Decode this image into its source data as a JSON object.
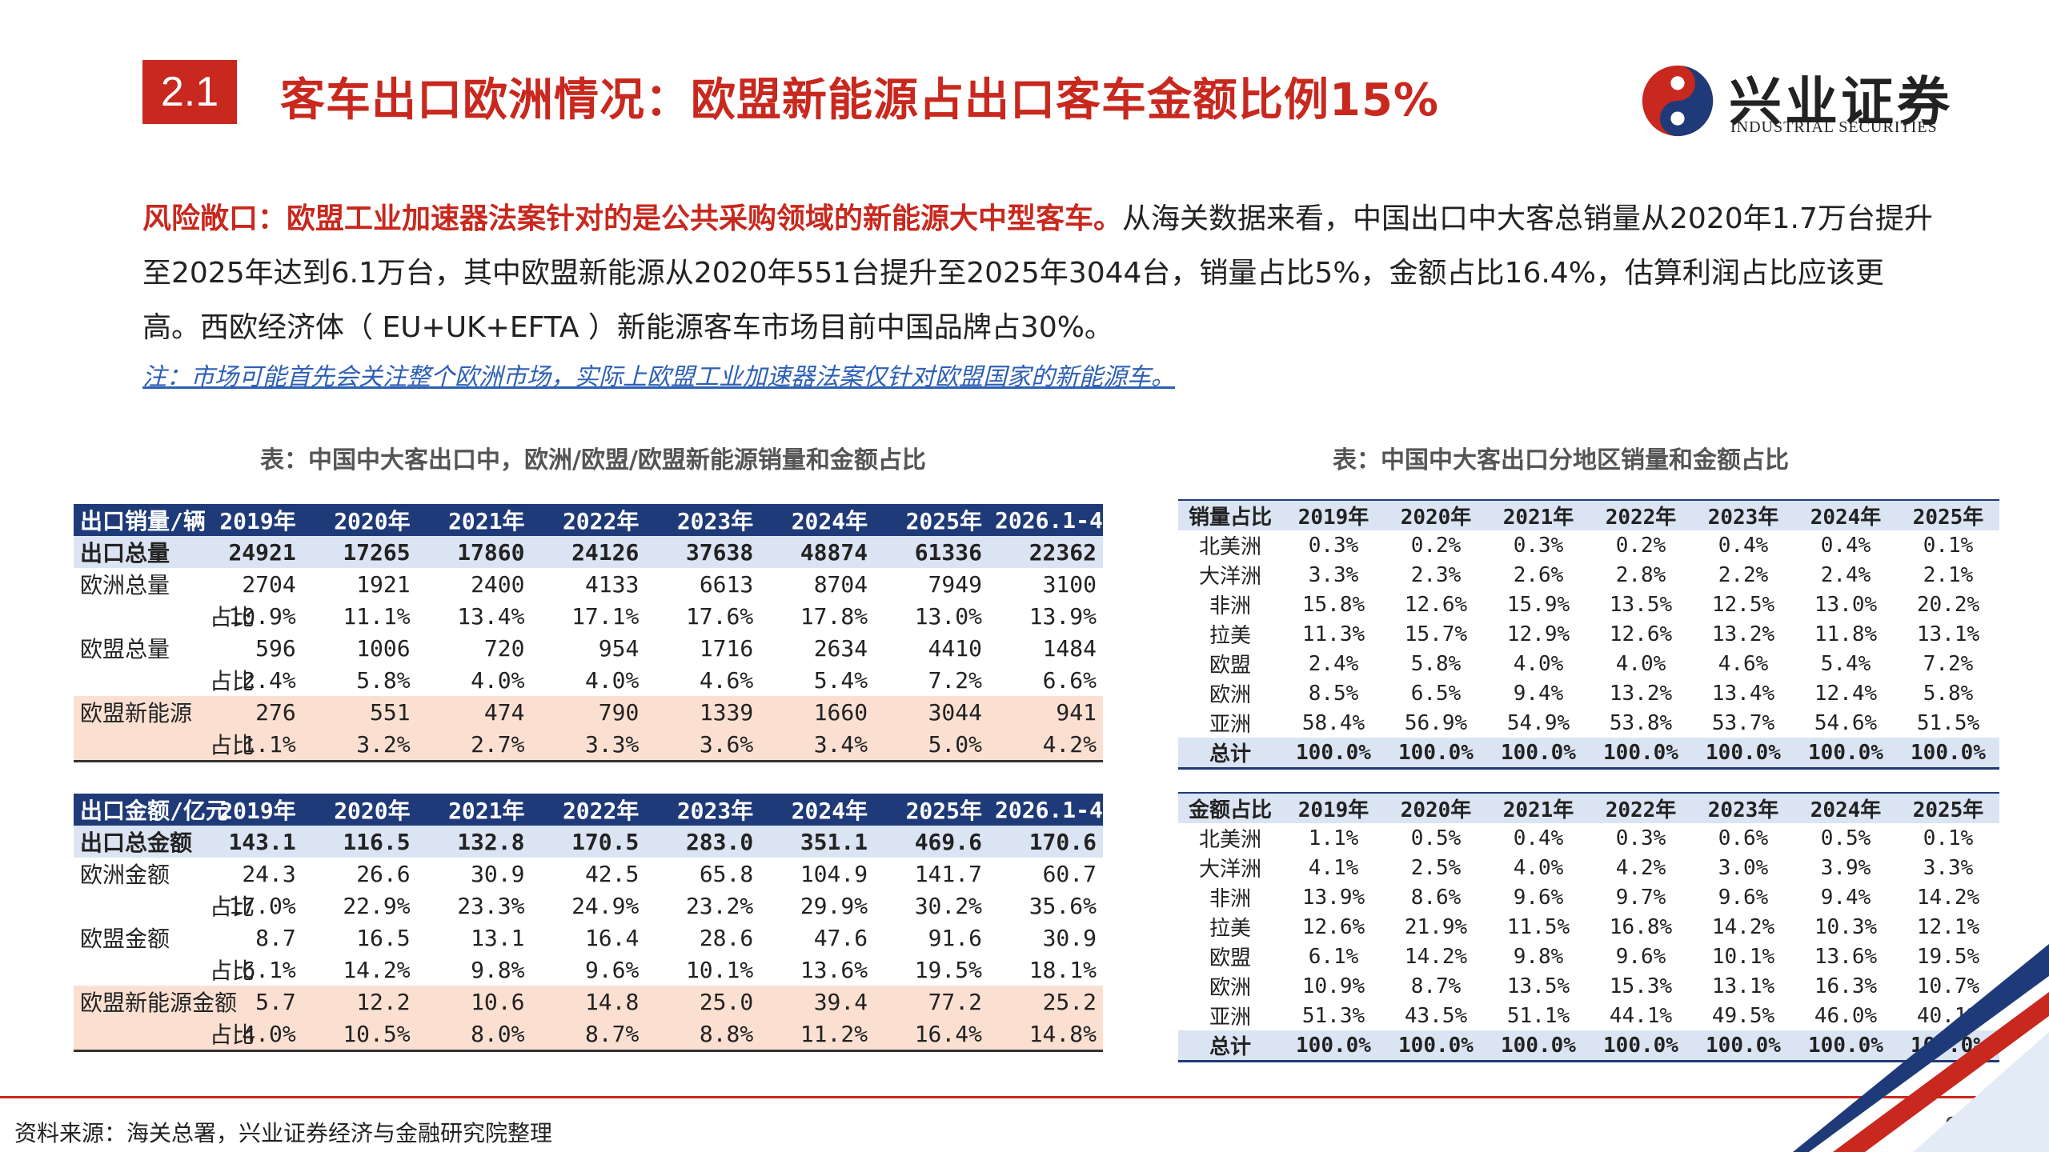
{
  "header": {
    "section_no": "2.1",
    "title": "客车出口欧洲情况：欧盟新能源占出口客车金额比例15%"
  },
  "logo": {
    "cn": "兴业证券",
    "en": "INDUSTRIAL SECURITIES"
  },
  "body": {
    "highlight": "风险敞口：欧盟工业加速器法案针对的是公共采购领域的新能源大中型客车。",
    "text": "从海关数据来看，中国出口中大客总销量从2020年1.7万台提升至2025年达到6.1万台，其中欧盟新能源从2020年551台提升至2025年3044台，销量占比5%，金额占比16.4%，估算利润占比应该更高。西欧经济体（ EU+UK+EFTA ）新能源客车市场目前中国品牌占30%。",
    "note": "注：市场可能首先会关注整个欧洲市场，实际上欧盟工业加速器法案仅针对欧盟国家的新能源车。"
  },
  "left_caption": "表：中国中大客出口中，欧洲/欧盟/欧盟新能源销量和金额占比",
  "right_caption": "表：中国中大客出口分地区销量和金额占比",
  "table_volume": {
    "header": [
      "出口销量/辆",
      "2019年",
      "2020年",
      "2021年",
      "2022年",
      "2023年",
      "2024年",
      "2025年",
      "2026.1-4"
    ],
    "rows": [
      {
        "label": "出口总量",
        "cells": [
          "24921",
          "17265",
          "17860",
          "24126",
          "37638",
          "48874",
          "61336",
          "22362"
        ]
      },
      {
        "label": "欧洲总量",
        "cells": [
          "2704",
          "1921",
          "2400",
          "4133",
          "6613",
          "8704",
          "7949",
          "3100"
        ]
      },
      {
        "label": "占比",
        "cells": [
          "10.9%",
          "11.1%",
          "13.4%",
          "17.1%",
          "17.6%",
          "17.8%",
          "13.0%",
          "13.9%"
        ]
      },
      {
        "label": "欧盟总量",
        "cells": [
          "596",
          "1006",
          "720",
          "954",
          "1716",
          "2634",
          "4410",
          "1484"
        ]
      },
      {
        "label": "占比",
        "cells": [
          "2.4%",
          "5.8%",
          "4.0%",
          "4.0%",
          "4.6%",
          "5.4%",
          "7.2%",
          "6.6%"
        ]
      },
      {
        "label": "欧盟新能源",
        "cells": [
          "276",
          "551",
          "474",
          "790",
          "1339",
          "1660",
          "3044",
          "941"
        ]
      },
      {
        "label": "占比",
        "cells": [
          "1.1%",
          "3.2%",
          "2.7%",
          "3.3%",
          "3.6%",
          "3.4%",
          "5.0%",
          "4.2%"
        ]
      }
    ]
  },
  "table_amount": {
    "header": [
      "出口金额/亿元",
      "2019年",
      "2020年",
      "2021年",
      "2022年",
      "2023年",
      "2024年",
      "2025年",
      "2026.1-4"
    ],
    "rows": [
      {
        "label": "出口总金额",
        "cells": [
          "143.1",
          "116.5",
          "132.8",
          "170.5",
          "283.0",
          "351.1",
          "469.6",
          "170.6"
        ]
      },
      {
        "label": "欧洲金额",
        "cells": [
          "24.3",
          "26.6",
          "30.9",
          "42.5",
          "65.8",
          "104.9",
          "141.7",
          "60.7"
        ]
      },
      {
        "label": "占比",
        "cells": [
          "17.0%",
          "22.9%",
          "23.3%",
          "24.9%",
          "23.2%",
          "29.9%",
          "30.2%",
          "35.6%"
        ]
      },
      {
        "label": "欧盟金额",
        "cells": [
          "8.7",
          "16.5",
          "13.1",
          "16.4",
          "28.6",
          "47.6",
          "91.6",
          "30.9"
        ]
      },
      {
        "label": "占比",
        "cells": [
          "6.1%",
          "14.2%",
          "9.8%",
          "9.6%",
          "10.1%",
          "13.6%",
          "19.5%",
          "18.1%"
        ]
      },
      {
        "label": "欧盟新能源金额",
        "cells": [
          "5.7",
          "12.2",
          "10.6",
          "14.8",
          "25.0",
          "39.4",
          "77.2",
          "25.2"
        ]
      },
      {
        "label": "占比",
        "cells": [
          "4.0%",
          "10.5%",
          "8.0%",
          "8.7%",
          "8.8%",
          "11.2%",
          "16.4%",
          "14.8%"
        ]
      }
    ]
  },
  "table_region_volume": {
    "header": [
      "销量占比",
      "2019年",
      "2020年",
      "2021年",
      "2022年",
      "2023年",
      "2024年",
      "2025年"
    ],
    "rows": [
      {
        "label": "北美洲",
        "cells": [
          "0.3%",
          "0.2%",
          "0.3%",
          "0.2%",
          "0.4%",
          "0.4%",
          "0.1%"
        ]
      },
      {
        "label": "大洋洲",
        "cells": [
          "3.3%",
          "2.3%",
          "2.6%",
          "2.8%",
          "2.2%",
          "2.4%",
          "2.1%"
        ]
      },
      {
        "label": "非洲",
        "cells": [
          "15.8%",
          "12.6%",
          "15.9%",
          "13.5%",
          "12.5%",
          "13.0%",
          "20.2%"
        ]
      },
      {
        "label": "拉美",
        "cells": [
          "11.3%",
          "15.7%",
          "12.9%",
          "12.6%",
          "13.2%",
          "11.8%",
          "13.1%"
        ]
      },
      {
        "label": "欧盟",
        "cells": [
          "2.4%",
          "5.8%",
          "4.0%",
          "4.0%",
          "4.6%",
          "5.4%",
          "7.2%"
        ]
      },
      {
        "label": "欧洲",
        "cells": [
          "8.5%",
          "6.5%",
          "9.4%",
          "13.2%",
          "13.4%",
          "12.4%",
          "5.8%"
        ]
      },
      {
        "label": "亚洲",
        "cells": [
          "58.4%",
          "56.9%",
          "54.9%",
          "53.8%",
          "53.7%",
          "54.6%",
          "51.5%"
        ]
      },
      {
        "label": "总计",
        "cells": [
          "100.0%",
          "100.0%",
          "100.0%",
          "100.0%",
          "100.0%",
          "100.0%",
          "100.0%"
        ]
      }
    ]
  },
  "table_region_amount": {
    "header": [
      "金额占比",
      "2019年",
      "2020年",
      "2021年",
      "2022年",
      "2023年",
      "2024年",
      "2025年"
    ],
    "rows": [
      {
        "label": "北美洲",
        "cells": [
          "1.1%",
          "0.5%",
          "0.4%",
          "0.3%",
          "0.6%",
          "0.5%",
          "0.1%"
        ]
      },
      {
        "label": "大洋洲",
        "cells": [
          "4.1%",
          "2.5%",
          "4.0%",
          "4.2%",
          "3.0%",
          "3.9%",
          "3.3%"
        ]
      },
      {
        "label": "非洲",
        "cells": [
          "13.9%",
          "8.6%",
          "9.6%",
          "9.7%",
          "9.6%",
          "9.4%",
          "14.2%"
        ]
      },
      {
        "label": "拉美",
        "cells": [
          "12.6%",
          "21.9%",
          "11.5%",
          "16.8%",
          "14.2%",
          "10.3%",
          "12.1%"
        ]
      },
      {
        "label": "欧盟",
        "cells": [
          "6.1%",
          "14.2%",
          "9.8%",
          "9.6%",
          "10.1%",
          "13.6%",
          "19.5%"
        ]
      },
      {
        "label": "欧洲",
        "cells": [
          "10.9%",
          "8.7%",
          "13.5%",
          "15.3%",
          "13.1%",
          "16.3%",
          "10.7%"
        ]
      },
      {
        "label": "亚洲",
        "cells": [
          "51.3%",
          "43.5%",
          "51.1%",
          "44.1%",
          "49.5%",
          "46.0%",
          "40.1%"
        ]
      },
      {
        "label": "总计",
        "cells": [
          "100.0%",
          "100.0%",
          "100.0%",
          "100.0%",
          "100.0%",
          "100.0%",
          "100.0%"
        ]
      }
    ]
  },
  "footer": {
    "source": "资料来源：海关总署，兴业证券经济与金融研究院整理",
    "page": "9"
  },
  "colors": {
    "accent_red": "#c8281e",
    "navy": "#1f3a78",
    "light_blue": "#dbe4f3",
    "peach": "#fbe0d2",
    "note_blue": "#2d5fb5"
  }
}
